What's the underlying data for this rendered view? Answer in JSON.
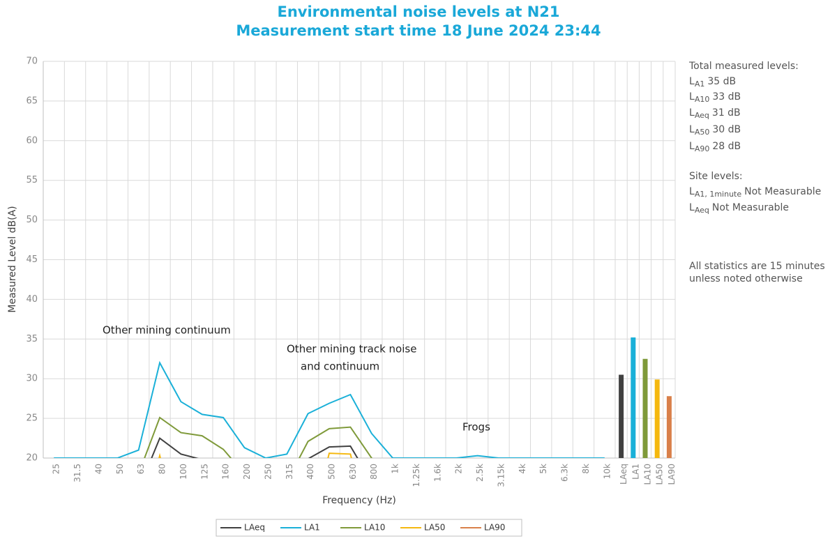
{
  "chart_data": {
    "type": "line",
    "title": "Environmental noise levels at N21",
    "subtitle": "Measurement start time 18 June 2024 23:44",
    "x_label": "Frequency (Hz)",
    "y_label": "Measured Level dB(A)",
    "categories": [
      "25",
      "31.5",
      "40",
      "50",
      "63",
      "80",
      "100",
      "125",
      "160",
      "200",
      "250",
      "315",
      "400",
      "500",
      "630",
      "800",
      "1k",
      "1.25k",
      "1.6k",
      "2k",
      "2.5k",
      "3.15k",
      "4k",
      "5k",
      "6.3k",
      "8k",
      "10k",
      "LAeq",
      "LA1",
      "LA10",
      "LA50",
      "LA90"
    ],
    "ylim": [
      20,
      70
    ],
    "yticks": [
      20,
      25,
      30,
      35,
      40,
      45,
      50,
      55,
      60,
      65,
      70
    ],
    "grid": true,
    "series": [
      {
        "name": "LAeq",
        "color": "#404040",
        "values": [
          null,
          null,
          null,
          null,
          16,
          22.5,
          20.5,
          19.8,
          null,
          null,
          null,
          null,
          19.9,
          21.4,
          21.5,
          17,
          null,
          null,
          null,
          null,
          null,
          null,
          null,
          null,
          null,
          null,
          null,
          null,
          null,
          null,
          null,
          null
        ]
      },
      {
        "name": "LA1",
        "color": "#1ab0d8",
        "values": [
          20,
          20,
          20,
          20,
          21,
          32,
          27.1,
          25.5,
          25.1,
          21.3,
          20,
          20.5,
          25.6,
          26.9,
          28,
          23.1,
          20,
          20,
          20,
          20,
          20.3,
          20,
          20,
          20,
          20,
          20,
          20,
          null,
          null,
          null,
          null,
          null
        ]
      },
      {
        "name": "LA10",
        "color": "#7f9a3a",
        "values": [
          null,
          null,
          null,
          null,
          18,
          25.1,
          23.2,
          22.8,
          21.1,
          18,
          null,
          17,
          22.1,
          23.7,
          23.9,
          20,
          18,
          null,
          null,
          null,
          null,
          null,
          null,
          null,
          null,
          null,
          null,
          null,
          null,
          null,
          null,
          null
        ]
      },
      {
        "name": "LA50",
        "color": "#f5b80f",
        "values": [
          null,
          null,
          null,
          null,
          10,
          20.3,
          10,
          null,
          null,
          null,
          null,
          null,
          10,
          20.6,
          20.5,
          10,
          null,
          null,
          null,
          null,
          null,
          null,
          null,
          null,
          null,
          null,
          null,
          null,
          null,
          null,
          null,
          null
        ]
      },
      {
        "name": "LA90",
        "color": "#d9804a",
        "values": [
          null,
          null,
          null,
          null,
          null,
          null,
          null,
          null,
          null,
          null,
          null,
          null,
          null,
          null,
          null,
          null,
          null,
          null,
          null,
          null,
          null,
          null,
          null,
          null,
          null,
          null,
          null,
          null,
          null,
          null,
          null,
          null
        ]
      }
    ],
    "bars": {
      "values": [
        30.5,
        35.2,
        32.5,
        29.9,
        27.8
      ],
      "colors": [
        "#404040",
        "#1ab0d8",
        "#7f9a3a",
        "#f5b80f",
        "#d9804a"
      ]
    },
    "annotations": [
      {
        "text": "Other mining continuum"
      },
      {
        "text": "Other mining track noise"
      },
      {
        "text": "and continuum"
      },
      {
        "text": "Frogs"
      }
    ],
    "side_notes": [
      {
        "text": "Total measured levels:"
      },
      {
        "base": "L",
        "sub": "A1",
        "text": "35 dB"
      },
      {
        "base": "L",
        "sub": "A10",
        "text": "33 dB"
      },
      {
        "base": "L",
        "sub": "Aeq",
        "text": "31 dB"
      },
      {
        "base": "L",
        "sub": "A50",
        "text": "30 dB"
      },
      {
        "base": "L",
        "sub": "A90",
        "text": "28 dB"
      },
      {
        "text": "Site levels:"
      },
      {
        "base": "L",
        "sub": "A1, 1minute",
        "text": "Not Measurable"
      },
      {
        "base": "L",
        "sub": "Aeq",
        "text": "Not Measurable"
      },
      {
        "text": "All statistics are 15 minutes"
      },
      {
        "text": "unless noted otherwise"
      }
    ]
  }
}
